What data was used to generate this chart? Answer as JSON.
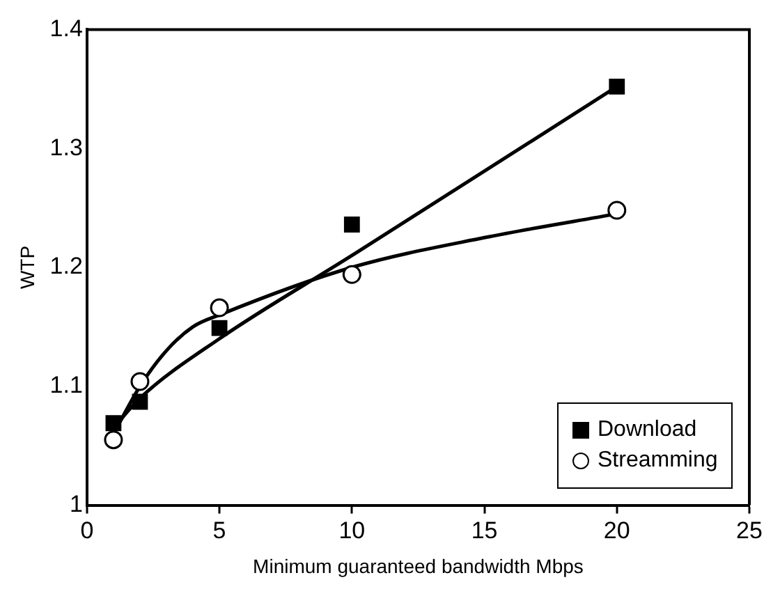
{
  "chart_data": {
    "type": "scatter",
    "xlabel": "Minimum guaranteed bandwidth Mbps",
    "ylabel": "WTP",
    "xlim": [
      0,
      25
    ],
    "xticks": [
      0,
      5,
      10,
      15,
      20,
      25
    ],
    "ylim": [
      1,
      1.4
    ],
    "yticks": [
      1,
      1.1,
      1.2,
      1.3,
      1.4
    ],
    "grid": false,
    "legend": "bottom right",
    "series": [
      {
        "name": "Download",
        "type": "scatter",
        "marker": "square",
        "color": "#000000",
        "x": [
          1,
          2,
          5,
          10,
          20
        ],
        "values": [
          1.069,
          1.087,
          1.149,
          1.236,
          1.352
        ]
      },
      {
        "name": "Streamming",
        "type": "scatter",
        "marker": "circle",
        "color": "#000000",
        "x": [
          1,
          2,
          5,
          10,
          20
        ],
        "values": [
          1.055,
          1.104,
          1.166,
          1.194,
          1.248
        ]
      },
      {
        "type": "line",
        "color": "#000000",
        "x": [
          1,
          2,
          5,
          10,
          20
        ],
        "values": [
          1.065,
          1.09,
          1.14,
          1.21,
          1.352
        ]
      },
      {
        "type": "line",
        "color": "#000000",
        "x": [
          1,
          2,
          3,
          4,
          5,
          10,
          15,
          20
        ],
        "values": [
          1.06,
          1.1,
          1.13,
          1.15,
          1.16,
          1.2,
          1.225,
          1.245
        ]
      }
    ]
  }
}
